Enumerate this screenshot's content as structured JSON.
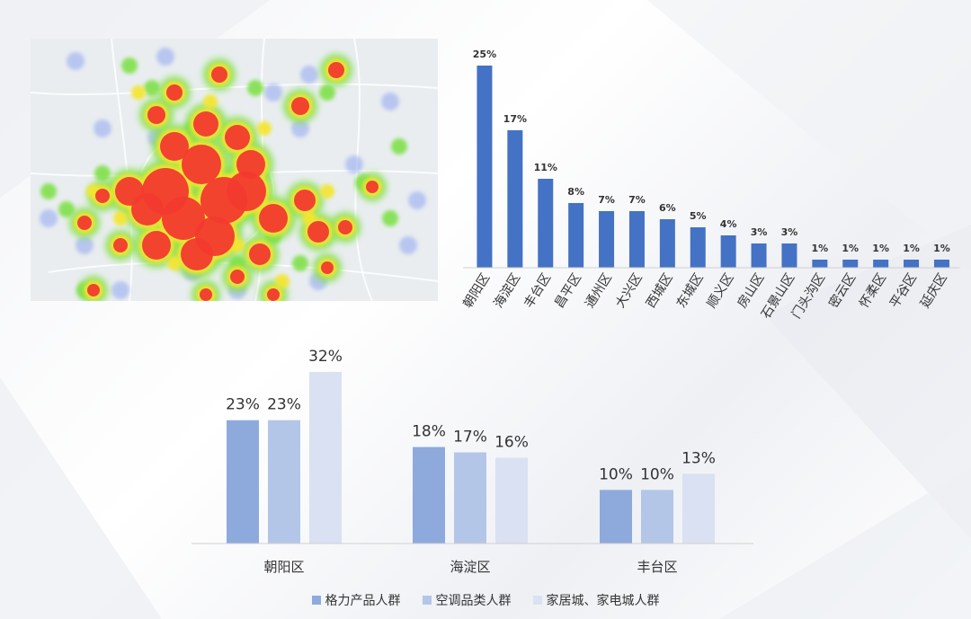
{
  "heatmap": {
    "colors": {
      "hot": "#f23a2f",
      "warm": "#f4e533",
      "mid": "#7fe04a",
      "cool": "#8fa6f0",
      "base": "#e9edf0",
      "road": "#ffffff"
    }
  },
  "chart_data": [
    {
      "type": "bar",
      "categories": [
        "朝阳区",
        "海淀区",
        "丰台区",
        "昌平区",
        "通州区",
        "大兴区",
        "西城区",
        "东城区",
        "顺义区",
        "房山区",
        "石景山区",
        "门头沟区",
        "密云区",
        "怀柔区",
        "平谷区",
        "延庆区"
      ],
      "values": [
        25,
        17,
        11,
        8,
        7,
        7,
        6,
        5,
        4,
        3,
        3,
        1,
        1,
        1,
        1,
        1
      ],
      "value_labels": [
        "25%",
        "17%",
        "11%",
        "8%",
        "7%",
        "7%",
        "6%",
        "5%",
        "4%",
        "3%",
        "3%",
        "1%",
        "1%",
        "1%",
        "1%",
        "1%"
      ],
      "color": "#4472c4",
      "ylim": [
        0,
        25
      ]
    },
    {
      "type": "bar",
      "categories": [
        "朝阳区",
        "海淀区",
        "丰台区"
      ],
      "series": [
        {
          "name": "格力产品人群",
          "values": [
            23,
            18,
            10
          ],
          "labels": [
            "23%",
            "18%",
            "10%"
          ],
          "color": "#8eaadc"
        },
        {
          "name": "空调品类人群",
          "values": [
            23,
            17,
            10
          ],
          "labels": [
            "23%",
            "17%",
            "10%"
          ],
          "color": "#b4c6e7"
        },
        {
          "name": "家居城、家电城人群",
          "values": [
            32,
            16,
            13
          ],
          "labels": [
            "32%",
            "16%",
            "13%"
          ],
          "color": "#d9e1f2"
        }
      ],
      "ylim": [
        0,
        32
      ],
      "legend_position": "bottom"
    }
  ]
}
